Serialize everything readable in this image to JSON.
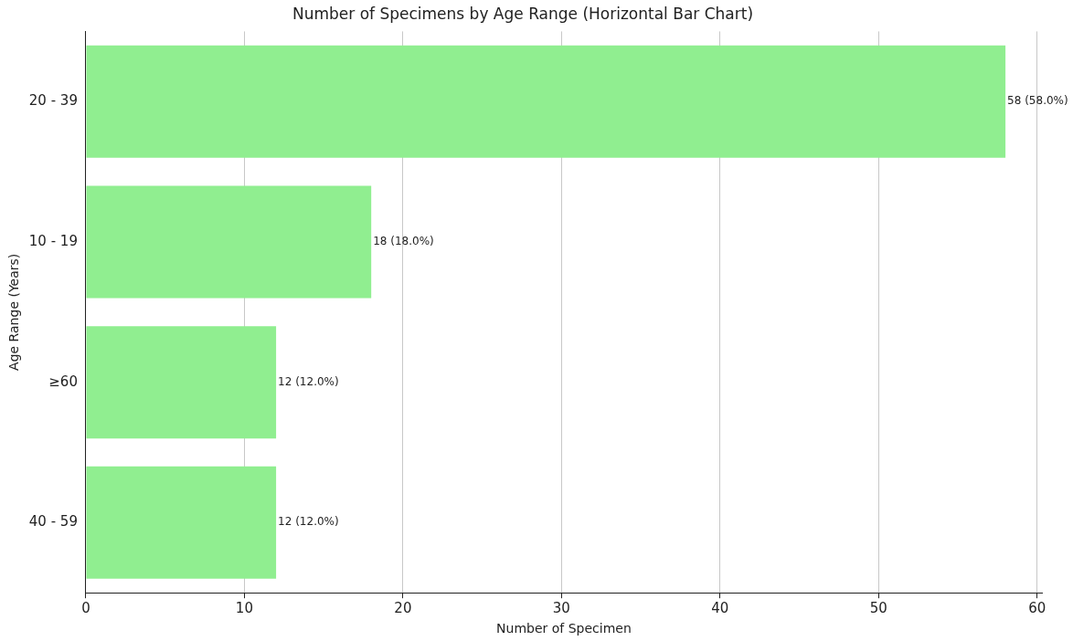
{
  "chart_data": {
    "type": "bar",
    "orientation": "horizontal",
    "title": "Number of Specimens by Age Range (Horizontal Bar Chart)",
    "xlabel": "Number of Specimen",
    "ylabel": "Age Range (Years)",
    "categories": [
      "20 - 39",
      "10 - 19",
      "≥60",
      "40 - 59"
    ],
    "values": [
      58,
      18,
      12,
      12
    ],
    "value_labels": [
      "58 (58.0%)",
      "18 (18.0%)",
      "12 (12.0%)",
      "12 (12.0%)"
    ],
    "color": "#90ee90",
    "xlim": [
      0,
      60.3
    ],
    "xticks": [
      0,
      10,
      20,
      30,
      40,
      50,
      60
    ],
    "grid": "x"
  }
}
